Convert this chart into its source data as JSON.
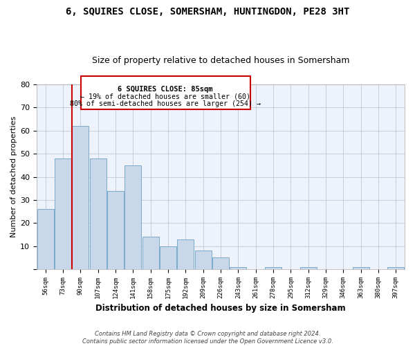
{
  "title": "6, SQUIRES CLOSE, SOMERSHAM, HUNTINGDON, PE28 3HT",
  "subtitle": "Size of property relative to detached houses in Somersham",
  "xlabel": "Distribution of detached houses by size in Somersham",
  "ylabel": "Number of detached properties",
  "categories": [
    "56sqm",
    "73sqm",
    "90sqm",
    "107sqm",
    "124sqm",
    "141sqm",
    "158sqm",
    "175sqm",
    "192sqm",
    "209sqm",
    "226sqm",
    "243sqm",
    "261sqm",
    "278sqm",
    "295sqm",
    "312sqm",
    "329sqm",
    "346sqm",
    "363sqm",
    "380sqm",
    "397sqm"
  ],
  "values": [
    26,
    48,
    62,
    48,
    34,
    45,
    14,
    10,
    13,
    8,
    5,
    1,
    0,
    1,
    0,
    1,
    0,
    0,
    1,
    0,
    1
  ],
  "bar_color": "#c8d8ea",
  "bar_edge_color": "#7aaaca",
  "grid_color": "#c0c8dc",
  "bg_color": "#eef2fa",
  "red_line_color": "#cc0000",
  "annotation_text_line1": "6 SQUIRES CLOSE: 85sqm",
  "annotation_text_line2": "← 19% of detached houses are smaller (60)",
  "annotation_text_line3": "80% of semi-detached houses are larger (254) →",
  "annotation_box_edgecolor": "#cc0000",
  "red_line_x": 1.5,
  "ylim_max": 80,
  "yticks": [
    0,
    10,
    20,
    30,
    40,
    50,
    60,
    70,
    80
  ],
  "title_fontsize": 10,
  "subtitle_fontsize": 9,
  "footer_line1": "Contains HM Land Registry data © Crown copyright and database right 2024.",
  "footer_line2": "Contains public sector information licensed under the Open Government Licence v3.0."
}
